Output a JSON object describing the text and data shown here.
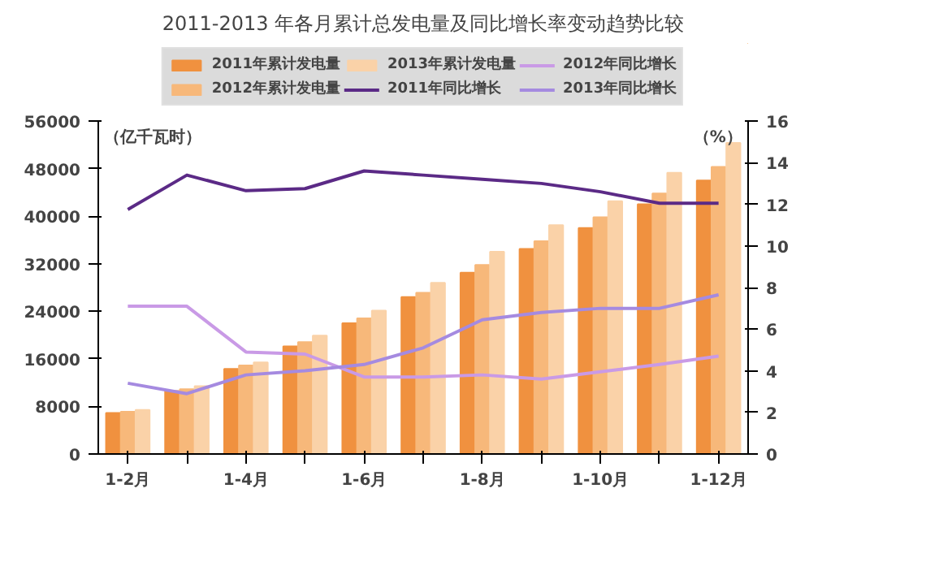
{
  "chart_data": {
    "type": "bar",
    "title": "2011-2013 年各月累计总发电量及同比增长率变动趋势比较",
    "ylabel": "（亿千瓦时）",
    "y2label": "（%）",
    "categories": [
      "1-2月",
      null,
      "1-4月",
      null,
      "1-6月",
      null,
      "1-8月",
      null,
      "1-10月",
      null,
      "1-12月"
    ],
    "series": [
      {
        "name": "2011年累计发电量",
        "color": "#f0913f",
        "values": [
          6900,
          10600,
          14300,
          18100,
          22000,
          26400,
          30500,
          34500,
          38000,
          42000,
          46000
        ]
      },
      {
        "name": "2012年累计发电量",
        "color": "#f7b87a",
        "values": [
          7100,
          10900,
          14900,
          18800,
          22800,
          27100,
          31800,
          35800,
          39800,
          43800,
          48300
        ]
      },
      {
        "name": "2013年累计发电量",
        "color": "#fad2a8",
        "values": [
          7400,
          11400,
          15400,
          19900,
          24100,
          28800,
          34000,
          38500,
          42500,
          47300,
          52300
        ]
      },
      {
        "name": "2011年同比增长",
        "type": "line",
        "axis": "y2",
        "color": "#5b2a86",
        "values": [
          11.75,
          13.4,
          12.65,
          12.75,
          13.6,
          13.4,
          13.2,
          13.0,
          12.6,
          12.05,
          12.05
        ]
      },
      {
        "name": "2012年同比增长",
        "type": "line",
        "axis": "y2",
        "color": "#c99ae6",
        "values": [
          7.1,
          7.1,
          4.9,
          4.8,
          3.7,
          3.7,
          3.8,
          3.6,
          3.95,
          4.3,
          4.7
        ]
      },
      {
        "name": "2013年同比增长",
        "type": "line",
        "axis": "y2",
        "color": "#a58ae0",
        "values": [
          3.4,
          2.9,
          3.8,
          4.0,
          4.3,
          5.1,
          6.45,
          6.8,
          7.0,
          7.0,
          7.65
        ]
      }
    ],
    "ylim": [
      0,
      56000
    ],
    "yticks": [
      0,
      8000,
      16000,
      24000,
      32000,
      40000,
      48000,
      56000
    ],
    "y2lim": [
      0,
      16
    ],
    "y2ticks": [
      0,
      2,
      4,
      6,
      8,
      10,
      12,
      14,
      16
    ],
    "grid": false,
    "legend": "top",
    "marker": "none",
    "line_style": "solid"
  }
}
